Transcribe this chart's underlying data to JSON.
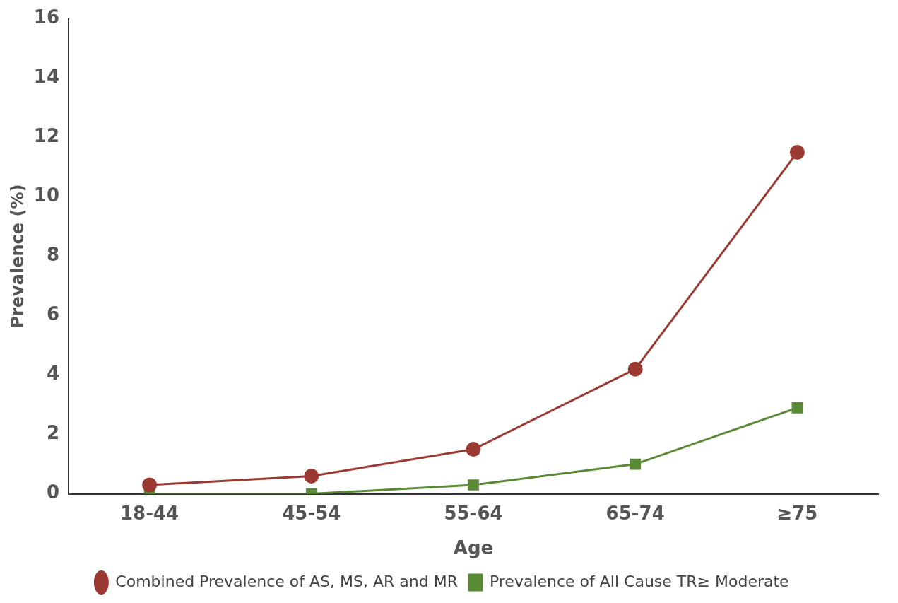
{
  "chart_data": {
    "type": "line",
    "xlabel": "Age",
    "ylabel": "Prevalence (%)",
    "categories": [
      "18-44",
      "45-54",
      "55-64",
      "65-74",
      "≥75"
    ],
    "series": [
      {
        "name": "Combined Prevalence of AS, MS, AR and MR",
        "color": "#9b3a32",
        "marker": "circle",
        "values": [
          0.3,
          0.6,
          1.5,
          4.2,
          11.5
        ]
      },
      {
        "name": "Prevalence of All Cause TR≥ Moderate",
        "color": "#5b8a37",
        "marker": "square",
        "values": [
          0,
          0,
          0.3,
          1.0,
          2.9
        ]
      }
    ],
    "ylim": [
      0,
      16
    ],
    "yticks": [
      0,
      2,
      4,
      6,
      8,
      10,
      12,
      14,
      16
    ],
    "grid": false,
    "legend": "bottom",
    "line_style": "solid"
  }
}
